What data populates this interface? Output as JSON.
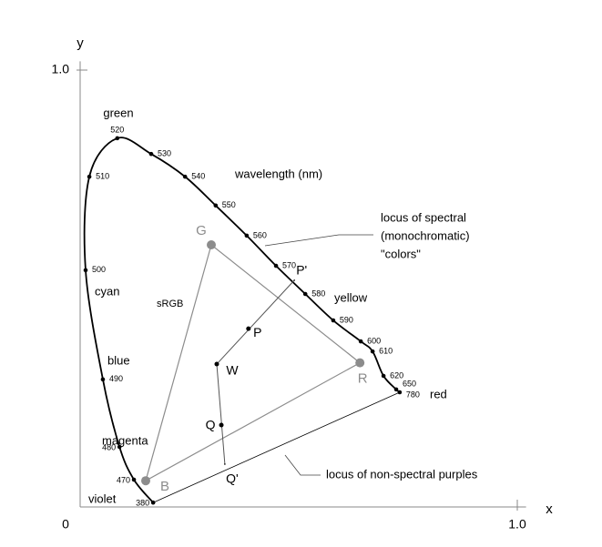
{
  "chart_data": {
    "type": "chromaticity",
    "xlabel": "x",
    "ylabel": "y",
    "xlim": [
      0,
      1.02
    ],
    "ylim": [
      0,
      1.02
    ],
    "xticks": [
      0,
      {
        "value": 1,
        "label": "1.0"
      }
    ],
    "yticks": [
      {
        "value": 1,
        "label": "1.0"
      }
    ],
    "locus": {
      "wavelengths": [
        380,
        470,
        480,
        490,
        500,
        510,
        520,
        530,
        540,
        550,
        560,
        570,
        580,
        590,
        600,
        610,
        620,
        650,
        780
      ],
      "x": [
        0.167,
        0.123,
        0.09,
        0.052,
        0.0125,
        0.021,
        0.085,
        0.1625,
        0.24,
        0.31,
        0.381,
        0.448,
        0.515,
        0.579,
        0.642,
        0.669,
        0.694,
        0.723,
        0.731
      ],
      "y": [
        0.01,
        0.0625,
        0.1375,
        0.292,
        0.542,
        0.756,
        0.844,
        0.808,
        0.756,
        0.69,
        0.621,
        0.552,
        0.4875,
        0.427,
        0.379,
        0.356,
        0.3,
        0.269,
        0.2625
      ],
      "color": "#000000"
    },
    "gamut": {
      "name": "sRGB",
      "color": "#8c8c8c",
      "points": [
        {
          "label": "R",
          "x": 0.64,
          "y": 0.33
        },
        {
          "label": "G",
          "x": 0.3,
          "y": 0.6
        },
        {
          "label": "B",
          "x": 0.15,
          "y": 0.06
        }
      ]
    },
    "points": [
      {
        "label": "W",
        "x": 0.3125,
        "y": 0.327
      },
      {
        "label": "P",
        "x": 0.385,
        "y": 0.408
      },
      {
        "label": "P'",
        "x": 0.49,
        "y": 0.519
      },
      {
        "label": "Q",
        "x": 0.323,
        "y": 0.1875
      },
      {
        "label": "Q'",
        "x": 0.331,
        "y": 0.098
      }
    ],
    "region_labels": [
      "green",
      "cyan",
      "blue",
      "magenta",
      "violet",
      "red",
      "yellow"
    ],
    "annotations": {
      "wavelength": "wavelength (nm)",
      "spectral_locus": [
        "locus of spectral",
        "(monochromatic)",
        "\"colors\""
      ],
      "purple_line": "locus of non-spectral purples"
    }
  }
}
